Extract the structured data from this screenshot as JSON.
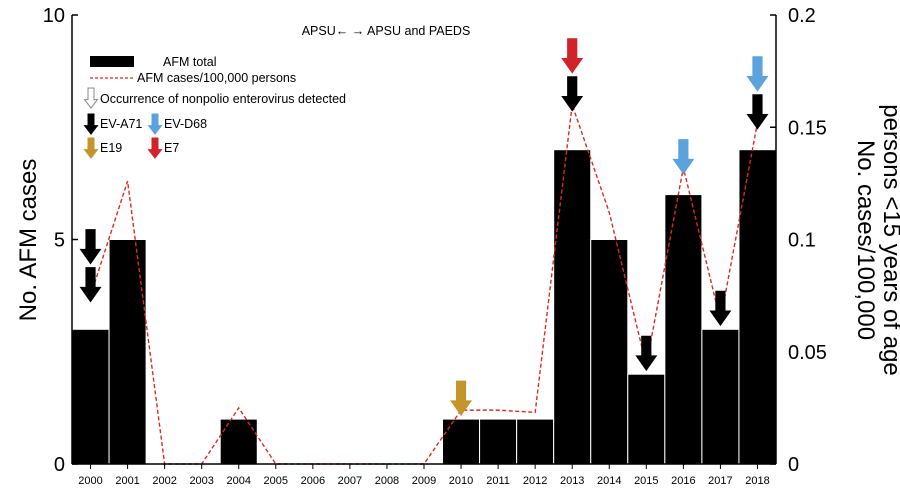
{
  "chart_data": {
    "type": "bar",
    "categories": [
      "2000",
      "2001",
      "2002",
      "2003",
      "2004",
      "2005",
      "2006",
      "2007",
      "2008",
      "2009",
      "2010",
      "2011",
      "2012",
      "2013",
      "2014",
      "2015",
      "2016",
      "2017",
      "2018"
    ],
    "series": [
      {
        "name": "AFM total",
        "kind": "bar",
        "axis": "left",
        "values": [
          3,
          5,
          0,
          0,
          1,
          0,
          0,
          0,
          0,
          0,
          1,
          1,
          1,
          7,
          5,
          2,
          6,
          3,
          7
        ]
      },
      {
        "name": "AFM cases/100,000 persons",
        "kind": "line",
        "axis": "right",
        "color": "#e0281e",
        "values": [
          0.075,
          0.126,
          0,
          0,
          0.025,
          0,
          0,
          0,
          0,
          0,
          0.024,
          0.024,
          0.023,
          0.16,
          0.112,
          0.044,
          0.132,
          0.064,
          0.152
        ]
      }
    ],
    "ylabel": "No. AFM cases",
    "ylim": [
      0,
      10
    ],
    "yticks": [
      0,
      5,
      10
    ],
    "y2label": "No. cases/100,000 persons <15 years of age",
    "y2label_lines": [
      "No. cases/100,000",
      "persons <15 years of age"
    ],
    "y2lim": [
      0,
      0.2
    ],
    "y2ticks": [
      "0",
      "0.05",
      "0.1",
      "0.15",
      "0.2"
    ],
    "y2tick_values": [
      0,
      0.05,
      0.1,
      0.15,
      0.2
    ],
    "grid": false,
    "annotation_top": "APSU← → APSU and PAEDS",
    "legend_placement": "top-left",
    "legend": {
      "bar_label": "AFM total",
      "line_label": "AFM cases/100,000 persons",
      "arrow_caption": "Occurrence of nonpolio enterovirus detected",
      "viruses": [
        {
          "label": "EV-A71",
          "color": "#000000"
        },
        {
          "label": "EV-D68",
          "color": "#5ba3dc"
        },
        {
          "label": "E19",
          "color": "#c4952a"
        },
        {
          "label": "E7",
          "color": "#d2232a"
        }
      ]
    },
    "arrows": [
      {
        "year": "2000",
        "virus": "EV-A71",
        "color": "#000000",
        "stack": [
          1,
          2
        ]
      },
      {
        "year": "2010",
        "virus": "E19",
        "color": "#c4952a",
        "stack": [
          1
        ]
      },
      {
        "year": "2013",
        "virus": "EV-A71",
        "color": "#000000",
        "stack": [
          1
        ]
      },
      {
        "year": "2013",
        "virus": "E7",
        "color": "#d2232a",
        "stack": [
          2
        ]
      },
      {
        "year": "2015",
        "virus": "EV-A71",
        "color": "#000000",
        "stack": [
          1
        ]
      },
      {
        "year": "2016",
        "virus": "EV-D68",
        "color": "#5ba3dc",
        "stack": [
          1
        ]
      },
      {
        "year": "2017",
        "virus": "EV-A71",
        "color": "#000000",
        "stack": [
          1
        ]
      },
      {
        "year": "2018",
        "virus": "EV-A71",
        "color": "#000000",
        "stack": [
          1
        ]
      },
      {
        "year": "2018",
        "virus": "EV-D68",
        "color": "#5ba3dc",
        "stack": [
          2
        ]
      }
    ]
  }
}
